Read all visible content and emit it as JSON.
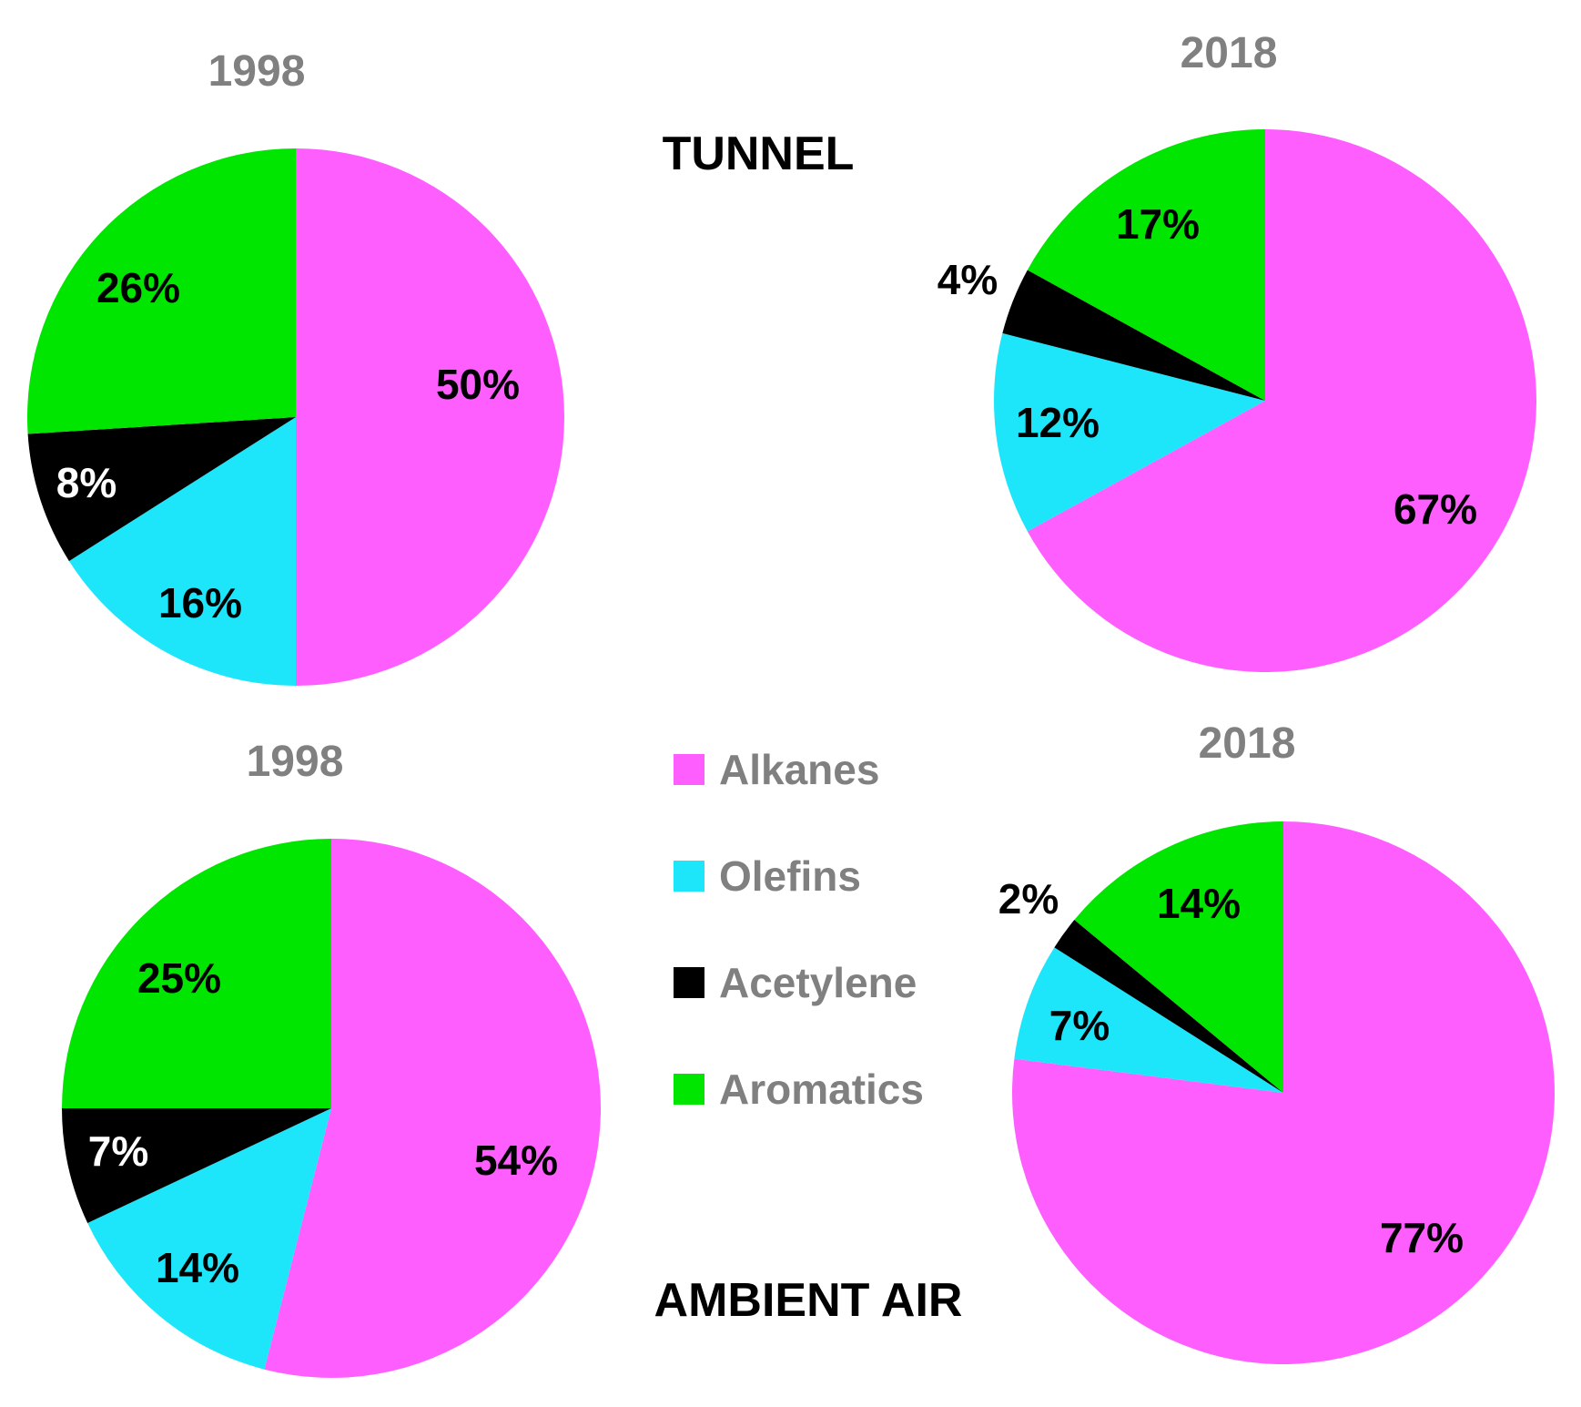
{
  "section_titles": {
    "tunnel": "TUNNEL",
    "ambient": "AMBIENT AIR"
  },
  "colors": {
    "alkanes": "#ff5eff",
    "olefins": "#1ee6fa",
    "acetylene": "#000000",
    "aromatics": "#00e600"
  },
  "legend": [
    {
      "key": "alkanes",
      "label": "Alkanes"
    },
    {
      "key": "olefins",
      "label": "Olefins"
    },
    {
      "key": "acetylene",
      "label": "Acetylene"
    },
    {
      "key": "aromatics",
      "label": "Aromatics"
    }
  ],
  "chart_data": [
    {
      "type": "pie",
      "group": "TUNNEL",
      "title": "1998",
      "slices": [
        {
          "key": "alkanes",
          "label": "Alkanes",
          "value": 50,
          "text": "50%"
        },
        {
          "key": "olefins",
          "label": "Olefins",
          "value": 16,
          "text": "16%"
        },
        {
          "key": "acetylene",
          "label": "Acetylene",
          "value": 8,
          "text": "8%"
        },
        {
          "key": "aromatics",
          "label": "Aromatics",
          "value": 26,
          "text": "26%"
        }
      ]
    },
    {
      "type": "pie",
      "group": "TUNNEL",
      "title": "2018",
      "slices": [
        {
          "key": "alkanes",
          "label": "Alkanes",
          "value": 67,
          "text": "67%"
        },
        {
          "key": "olefins",
          "label": "Olefins",
          "value": 12,
          "text": "12%"
        },
        {
          "key": "acetylene",
          "label": "Acetylene",
          "value": 4,
          "text": "4%"
        },
        {
          "key": "aromatics",
          "label": "Aromatics",
          "value": 17,
          "text": "17%"
        }
      ]
    },
    {
      "type": "pie",
      "group": "AMBIENT AIR",
      "title": "1998",
      "slices": [
        {
          "key": "alkanes",
          "label": "Alkanes",
          "value": 54,
          "text": "54%"
        },
        {
          "key": "olefins",
          "label": "Olefins",
          "value": 14,
          "text": "14%"
        },
        {
          "key": "acetylene",
          "label": "Acetylene",
          "value": 7,
          "text": "7%"
        },
        {
          "key": "aromatics",
          "label": "Aromatics",
          "value": 25,
          "text": "25%"
        }
      ]
    },
    {
      "type": "pie",
      "group": "AMBIENT AIR",
      "title": "2018",
      "slices": [
        {
          "key": "alkanes",
          "label": "Alkanes",
          "value": 77,
          "text": "77%"
        },
        {
          "key": "olefins",
          "label": "Olefins",
          "value": 7,
          "text": "7%"
        },
        {
          "key": "acetylene",
          "label": "Acetylene",
          "value": 2,
          "text": "2%"
        },
        {
          "key": "aromatics",
          "label": "Aromatics",
          "value": 14,
          "text": "14%"
        }
      ]
    }
  ]
}
